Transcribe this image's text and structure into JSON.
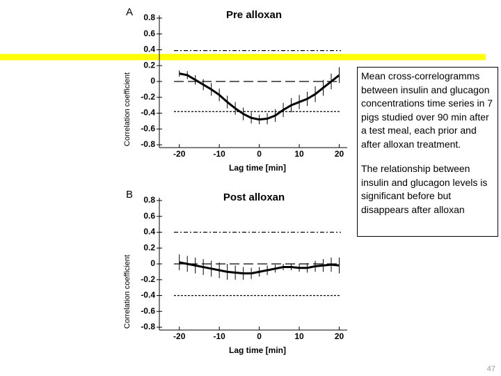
{
  "chart_data": [
    {
      "type": "line",
      "panel": "A",
      "title": "Pre alloxan",
      "x_label": "Lag time [min]",
      "y_label": "Correlation coefficient",
      "x": [
        -20,
        -18,
        -16,
        -14,
        -12,
        -10,
        -8,
        -6,
        -4,
        -2,
        0,
        2,
        4,
        6,
        8,
        10,
        12,
        14,
        16,
        18,
        20
      ],
      "values": [
        0.1,
        0.08,
        0.02,
        -0.04,
        -0.1,
        -0.17,
        -0.26,
        -0.34,
        -0.41,
        -0.46,
        -0.48,
        -0.47,
        -0.43,
        -0.36,
        -0.3,
        -0.26,
        -0.22,
        -0.16,
        -0.08,
        0.0,
        0.08
      ],
      "errors": [
        0.04,
        0.05,
        0.06,
        0.07,
        0.08,
        0.08,
        0.08,
        0.08,
        0.08,
        0.07,
        0.06,
        0.07,
        0.08,
        0.09,
        0.09,
        0.09,
        0.09,
        0.1,
        0.1,
        0.1,
        0.1
      ],
      "hlines": [
        0.39,
        0,
        -0.38
      ],
      "color": "#000000",
      "xlim": [
        -25,
        22
      ],
      "ylim": [
        -0.8,
        0.8
      ],
      "xticks": [
        -20,
        -10,
        0,
        10,
        20
      ],
      "yticks": [
        0.8,
        0.6,
        0.4,
        0.2,
        0,
        -0.2,
        -0.4,
        -0.6,
        -0.8
      ]
    },
    {
      "type": "line",
      "panel": "B",
      "title": "Post alloxan",
      "x_label": "Lag time [min]",
      "y_label": "Correlation coefficient",
      "x": [
        -20,
        -18,
        -16,
        -14,
        -12,
        -10,
        -8,
        -6,
        -4,
        -2,
        0,
        2,
        4,
        6,
        8,
        10,
        12,
        14,
        16,
        18,
        20
      ],
      "values": [
        0.02,
        0.0,
        -0.02,
        -0.04,
        -0.06,
        -0.08,
        -0.1,
        -0.11,
        -0.12,
        -0.12,
        -0.1,
        -0.08,
        -0.06,
        -0.04,
        -0.04,
        -0.05,
        -0.05,
        -0.03,
        -0.02,
        -0.01,
        -0.02
      ],
      "errors": [
        0.1,
        0.1,
        0.1,
        0.1,
        0.1,
        0.1,
        0.1,
        0.09,
        0.08,
        0.07,
        0.06,
        0.06,
        0.05,
        0.04,
        0.04,
        0.05,
        0.06,
        0.07,
        0.08,
        0.09,
        0.1
      ],
      "hlines": [
        0.4,
        0,
        -0.4
      ],
      "color": "#000000",
      "xlim": [
        -25,
        22
      ],
      "ylim": [
        -0.8,
        0.8
      ],
      "xticks": [
        -20,
        -10,
        0,
        10,
        20
      ],
      "yticks": [
        0.8,
        0.6,
        0.4,
        0.2,
        0,
        -0.2,
        -0.4,
        -0.6,
        -0.8
      ]
    }
  ],
  "note": {
    "paragraphs": [
      "Mean cross-correlogramms between insulin and glucagon concentrations time series in 7 pigs studied over 90 min after a test meal, each prior and after alloxan treatment.",
      "The relationship between insulin and glucagon levels is significant before but disappears after alloxan"
    ]
  },
  "page_number": "47"
}
